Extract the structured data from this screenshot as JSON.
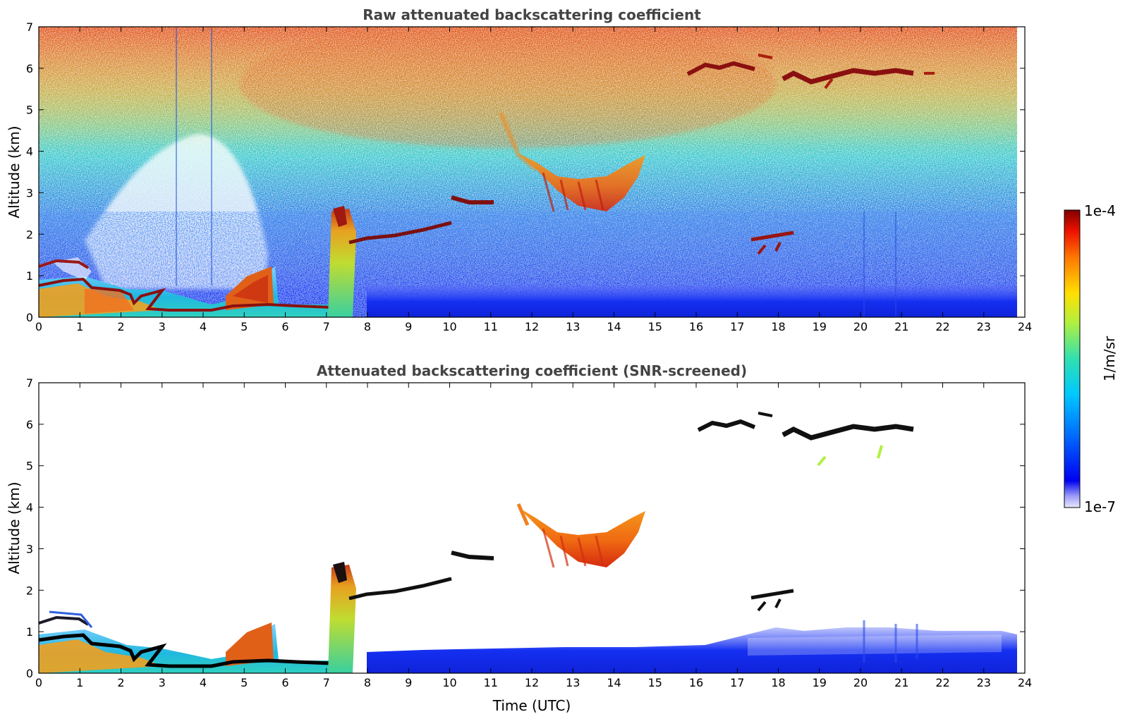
{
  "chart_data": [
    {
      "type": "heatmap",
      "title": "Raw attenuated backscattering coefficient",
      "xlabel": "",
      "ylabel": "Altitude (km)",
      "xlim": [
        0,
        24
      ],
      "ylim": [
        0,
        7
      ],
      "xticks": [
        "0",
        "1",
        "2",
        "3",
        "4",
        "5",
        "6",
        "7",
        "8",
        "9",
        "10",
        "11",
        "12",
        "13",
        "14",
        "15",
        "16",
        "17",
        "18",
        "19",
        "20",
        "21",
        "22",
        "23",
        "24"
      ],
      "yticks": [
        "0",
        "1",
        "2",
        "3",
        "4",
        "5",
        "6",
        "7"
      ],
      "grid": false,
      "data_end_x": 23.8,
      "features": [
        {
          "kind": "boundary_layer",
          "x": [
            0,
            8.9
          ],
          "y": [
            0,
            0.8
          ]
        },
        {
          "kind": "cloud_layer",
          "x": [
            7.6,
            10.2
          ],
          "y": [
            1.8,
            2.2
          ]
        },
        {
          "kind": "cloud_layer",
          "x": [
            10.2,
            11.1
          ],
          "y": [
            2.7,
            2.9
          ]
        },
        {
          "kind": "cirrus_fall_streaks",
          "x": [
            12.0,
            14.8
          ],
          "y": [
            2.4,
            3.8
          ]
        },
        {
          "kind": "cirrus_layer",
          "x": [
            16.1,
            21.4
          ],
          "y": [
            5.5,
            6.2
          ]
        },
        {
          "kind": "aerosol_plume",
          "x": [
            7.2,
            7.8
          ],
          "y": [
            0,
            2.6
          ]
        },
        {
          "kind": "cloud_fragments",
          "x": [
            17.5,
            18.4
          ],
          "y": [
            1.4,
            1.8
          ]
        }
      ]
    },
    {
      "type": "heatmap",
      "title": "Attenuated backscattering coefficient (SNR-screened)",
      "xlabel": "Time (UTC)",
      "ylabel": "Altitude (km)",
      "xlim": [
        0,
        24
      ],
      "ylim": [
        0,
        7
      ],
      "xticks": [
        "0",
        "1",
        "2",
        "3",
        "4",
        "5",
        "6",
        "7",
        "8",
        "9",
        "10",
        "11",
        "12",
        "13",
        "14",
        "15",
        "16",
        "17",
        "18",
        "19",
        "20",
        "21",
        "22",
        "23",
        "24"
      ],
      "yticks": [
        "0",
        "1",
        "2",
        "3",
        "4",
        "5",
        "6",
        "7"
      ],
      "grid": false,
      "data_end_x": 23.8
    }
  ],
  "colorbar": {
    "label": "1/m/sr",
    "min_label": "1e-7",
    "max_label": "1e-4",
    "scale": "log",
    "colormap": "jet"
  }
}
